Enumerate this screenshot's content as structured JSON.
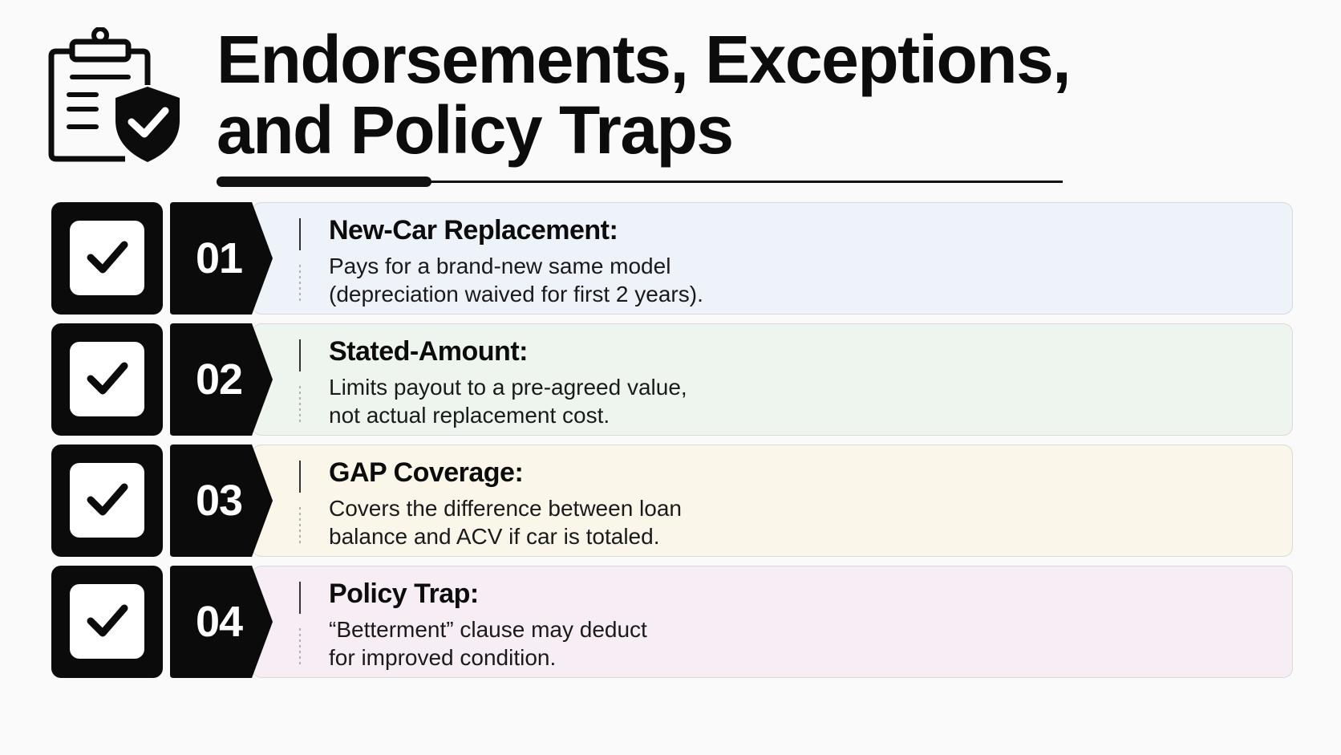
{
  "header": {
    "icon": "clipboard-shield-check-icon",
    "title_line1": "Endorsements, Exceptions,",
    "title_line2": "and Policy Traps"
  },
  "items": [
    {
      "number": "01",
      "title": "New-Car Replacement:",
      "desc_line1": "Pays for a brand-new same model",
      "desc_line2": "(depreciation waived for first 2 years).",
      "icon": "sparkling-car-icon",
      "card_color": "#eef2f9",
      "circle_color": "#e1e7f1"
    },
    {
      "number": "02",
      "title": "Stated-Amount:",
      "desc_line1": "Limits payout to a pre-agreed value,",
      "desc_line2": "not actual replacement cost.",
      "icon": "document-dollar-icon",
      "card_color": "#eef5ee",
      "circle_color": "#e3ede3"
    },
    {
      "number": "03",
      "title": "GAP Coverage:",
      "desc_line1": "Covers the difference between loan",
      "desc_line2": "balance and ACV if car is totaled.",
      "icon": "shield-dollar-crashed-cars-icon",
      "card_color": "#fbf6ea",
      "circle_color": "#f3ead6"
    },
    {
      "number": "04",
      "title": "Policy Trap:",
      "desc_line1": "“Betterment” clause may deduct",
      "desc_line2": "for improved condition.",
      "icon": "bear-trap-warning-icon",
      "card_color": "#f6eef4",
      "circle_color": "#eddfe9"
    }
  ]
}
